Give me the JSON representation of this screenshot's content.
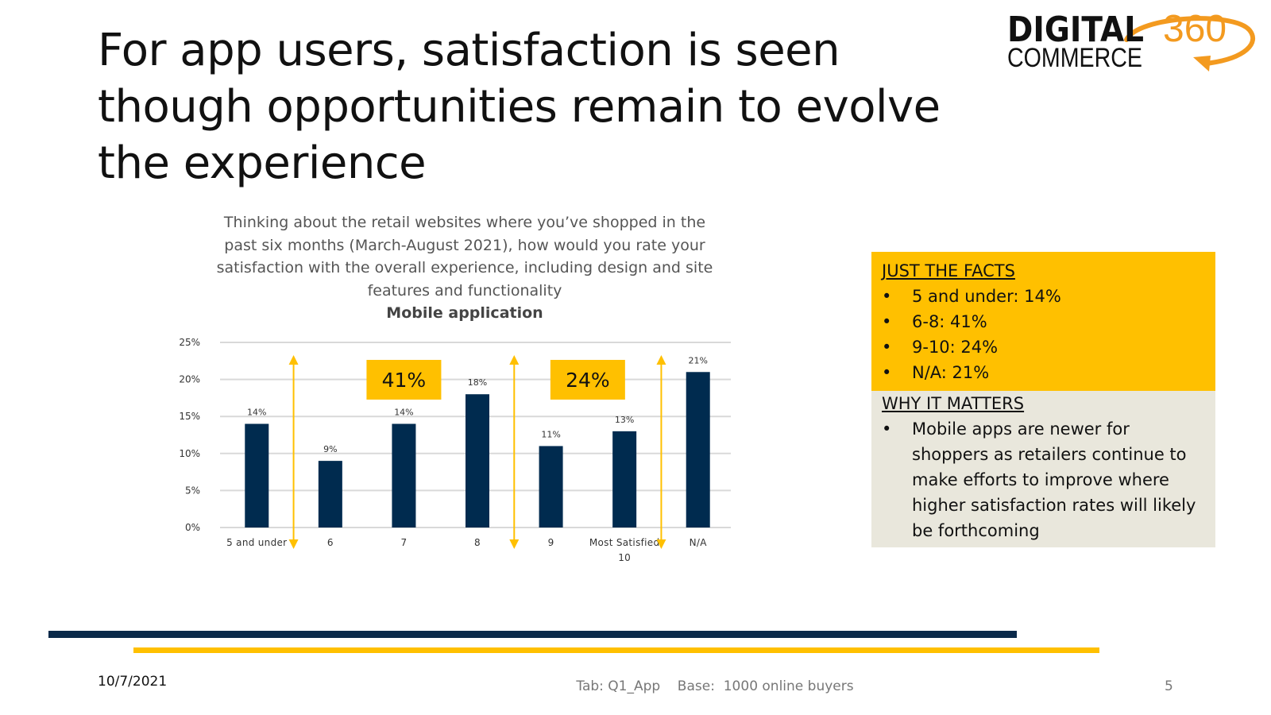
{
  "slide": {
    "title": "For app users, satisfaction is seen though opportunities remain to evolve the experience",
    "date": "10/7/2021",
    "source": "Tab: Q1_App    Base:  1000 online buyers",
    "page_number": "5"
  },
  "logo": {
    "line1": "DIGITAL",
    "line2": "COMMERCE",
    "number": "360"
  },
  "question": {
    "text": "Thinking about the retail websites where you’ve shopped in the past six months (March-August 2021), how would you rate your satisfaction with the overall experience, including design and site features and functionality",
    "subtitle": "Mobile application"
  },
  "chart_data": {
    "type": "bar",
    "title": "Mobile application",
    "categories": [
      "5 and under",
      "6",
      "7",
      "8",
      "9",
      "Most Satisfied 10",
      "N/A"
    ],
    "category_lines": [
      [
        "5 and under"
      ],
      [
        "6"
      ],
      [
        "7"
      ],
      [
        "8"
      ],
      [
        "9"
      ],
      [
        "Most Satisfied",
        "10"
      ],
      [
        "N/A"
      ]
    ],
    "values": [
      14,
      9,
      14,
      18,
      11,
      13,
      21
    ],
    "data_labels": [
      "14%",
      "9%",
      "14%",
      "18%",
      "11%",
      "13%",
      "21%"
    ],
    "yticks": [
      "0%",
      "5%",
      "10%",
      "15%",
      "20%",
      "25%"
    ],
    "ylim": [
      0,
      25
    ],
    "grid": true,
    "bar_color": "#002B4F",
    "group_annotations": [
      {
        "label": "41%",
        "from_category": "6",
        "to_category": "8"
      },
      {
        "label": "24%",
        "from_category": "9",
        "to_category": "Most Satisfied 10"
      }
    ],
    "annotation_color": "#FFC000"
  },
  "facts": {
    "heading": "JUST THE FACTS",
    "items": [
      "5 and under:  14%",
      "6-8:  41%",
      "9-10:  24%",
      "N/A:  21%"
    ]
  },
  "why": {
    "heading": "WHY IT MATTERS",
    "items": [
      "Mobile apps are newer for shoppers as retailers continue to make efforts to improve where higher satisfaction rates will likely be forthcoming"
    ]
  },
  "colors": {
    "navy": "#0B2A4A",
    "gold": "#FFC000",
    "grey_panel": "#E9E7DC",
    "logo_orange": "#F39A1F"
  }
}
